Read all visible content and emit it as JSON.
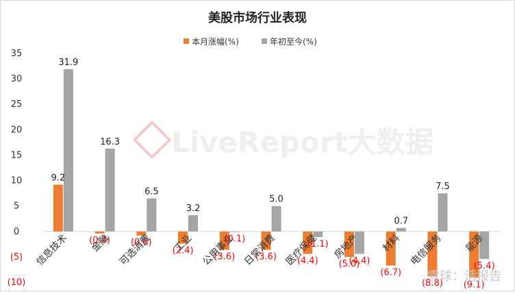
{
  "chart_data": {
    "type": "bar",
    "title": "美股市场行业表现",
    "legend_position": "top",
    "categories": [
      "信息技术",
      "金融",
      "可选消费",
      "工业",
      "公用事业",
      "日常消费",
      "医疗保健",
      "房地产",
      "材料",
      "电信服务",
      "能源"
    ],
    "series": [
      {
        "name": "本月涨幅(%)",
        "color": "#ED7D31",
        "values": [
          9.2,
          -0.4,
          -0.8,
          -2.4,
          -3.6,
          -3.6,
          -4.4,
          -5.0,
          -6.7,
          -8.8,
          -9.1
        ]
      },
      {
        "name": "年初至今(%)",
        "color": "#A5A5A5",
        "values": [
          31.9,
          16.3,
          6.5,
          3.2,
          -0.1,
          5.0,
          -1.1,
          -4.4,
          0.7,
          7.5,
          -5.4
        ]
      }
    ],
    "data_labels": {
      "本月涨幅(%)": [
        "9.2",
        "(0.4)",
        "(0.8)",
        "(2.4)",
        "(3.6)",
        "(3.6)",
        "(4.4)",
        "(5.0)",
        "(6.7)",
        "(8.8)",
        "(9.1)"
      ],
      "年初至今(%)": [
        "31.9",
        "16.3",
        "6.5",
        "3.2",
        "(0.1)",
        "5.0",
        "(1.1)",
        "(4.4)",
        "0.7",
        "7.5",
        "(5.4)"
      ]
    },
    "y_ticks": [
      35,
      30,
      25,
      20,
      15,
      10,
      5,
      0,
      -5,
      -10
    ],
    "y_tick_labels": [
      "35",
      "30",
      "25",
      "20",
      "15",
      "10",
      "5",
      "0",
      "(5)",
      "(10)"
    ],
    "ylim": [
      -10,
      35
    ],
    "grid": false,
    "negative_label_color": "#FF0000",
    "positive_label_color": "#222222"
  },
  "watermark": {
    "center_text": "LiveReport大数据",
    "corner_text": "雪球：活报告"
  }
}
